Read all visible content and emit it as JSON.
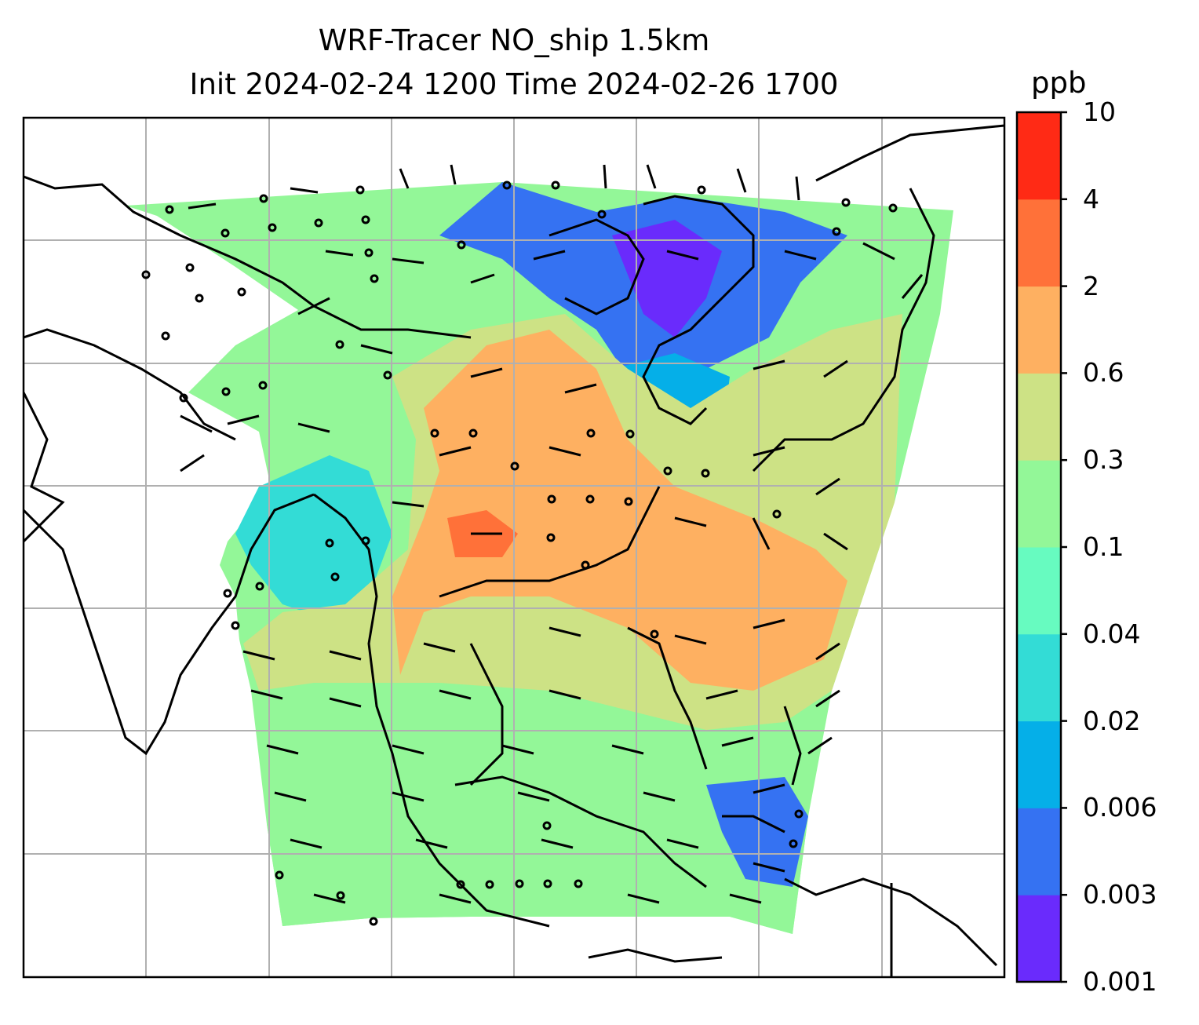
{
  "title_line1": "WRF-Tracer NO_ship 1.5km",
  "title_line2": "Init 2024-02-24 1200 Time 2024-02-26 1700",
  "colorbar": {
    "unit": "ppb",
    "levels": [
      "0.001",
      "0.003",
      "0.006",
      "0.02",
      "0.04",
      "0.1",
      "0.3",
      "0.6",
      "2",
      "4",
      "10"
    ],
    "colors": [
      "#6a2bfc",
      "#3572f2",
      "#05afe8",
      "#33dcd6",
      "#67fbc0",
      "#93f798",
      "#cde285",
      "#feb061",
      "#ff7139",
      "#ff2a15"
    ]
  },
  "map": {
    "gridlines": true,
    "features": [
      "coastlines",
      "country-borders",
      "wind-barbs",
      "tracer-concentration-shading"
    ]
  }
}
